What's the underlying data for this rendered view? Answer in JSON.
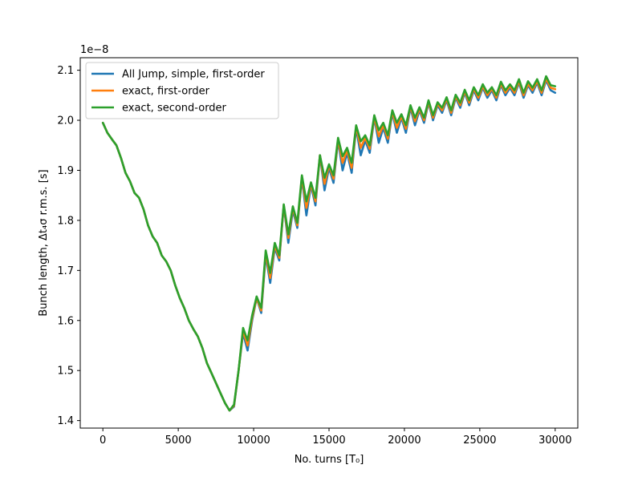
{
  "chart_data": {
    "type": "line",
    "xlabel": "No. turns [T₀]",
    "ylabel": "Bunch length, Δt₄σ r.m.s. [s]",
    "offset_text": "1e−8",
    "xlim": [
      -1500,
      31500
    ],
    "ylim": [
      1.385,
      2.125
    ],
    "xticks": [
      0,
      5000,
      10000,
      15000,
      20000,
      25000,
      30000
    ],
    "yticks": [
      1.4,
      1.5,
      1.6,
      1.7,
      1.8,
      1.9,
      2.0,
      2.1
    ],
    "ytick_labels": [
      "1.4",
      "1.5",
      "1.6",
      "1.7",
      "1.8",
      "1.9",
      "2.0",
      "2.1"
    ],
    "legend_position": "top-left",
    "x": [
      0,
      300,
      600,
      900,
      1200,
      1500,
      1800,
      2100,
      2400,
      2700,
      3000,
      3300,
      3600,
      3900,
      4200,
      4500,
      4800,
      5100,
      5400,
      5700,
      6000,
      6300,
      6600,
      6900,
      7200,
      7500,
      7800,
      8100,
      8400,
      8700,
      9000,
      9300,
      9600,
      9900,
      10200,
      10500,
      10800,
      11100,
      11400,
      11700,
      12000,
      12300,
      12600,
      12900,
      13200,
      13500,
      13800,
      14100,
      14400,
      14700,
      15000,
      15300,
      15600,
      15900,
      16200,
      16500,
      16800,
      17100,
      17400,
      17700,
      18000,
      18300,
      18600,
      18900,
      19200,
      19500,
      19800,
      20100,
      20400,
      20700,
      21000,
      21300,
      21600,
      21900,
      22200,
      22500,
      22800,
      23100,
      23400,
      23700,
      24000,
      24300,
      24600,
      24900,
      25200,
      25500,
      25800,
      26100,
      26400,
      26700,
      27000,
      27300,
      27600,
      27900,
      28200,
      28500,
      28800,
      29100,
      29400,
      29700,
      30000
    ],
    "series": [
      {
        "name": "All Jump, simple, first-order",
        "color": "#1f77b4",
        "values": [
          1.995,
          1.975,
          1.962,
          1.95,
          1.925,
          1.895,
          1.878,
          1.855,
          1.845,
          1.822,
          1.79,
          1.768,
          1.755,
          1.73,
          1.718,
          1.7,
          1.67,
          1.645,
          1.625,
          1.6,
          1.583,
          1.568,
          1.545,
          1.515,
          1.495,
          1.475,
          1.455,
          1.435,
          1.42,
          1.428,
          1.5,
          1.575,
          1.54,
          1.6,
          1.645,
          1.615,
          1.73,
          1.675,
          1.745,
          1.72,
          1.83,
          1.755,
          1.82,
          1.785,
          1.885,
          1.81,
          1.87,
          1.83,
          1.93,
          1.86,
          1.905,
          1.875,
          1.96,
          1.9,
          1.935,
          1.895,
          1.985,
          1.93,
          1.96,
          1.935,
          2.005,
          1.955,
          1.985,
          1.955,
          2.015,
          1.975,
          2.005,
          1.975,
          2.025,
          1.99,
          2.02,
          1.995,
          2.035,
          2.0,
          2.03,
          2.015,
          2.04,
          2.01,
          2.045,
          2.025,
          2.055,
          2.03,
          2.06,
          2.04,
          2.065,
          2.045,
          2.06,
          2.04,
          2.07,
          2.05,
          2.065,
          2.05,
          2.075,
          2.045,
          2.07,
          2.055,
          2.075,
          2.05,
          2.08,
          2.06,
          2.055
        ]
      },
      {
        "name": "exact, first-order",
        "color": "#ff7f0e",
        "values": [
          1.995,
          1.975,
          1.962,
          1.95,
          1.925,
          1.895,
          1.878,
          1.855,
          1.845,
          1.822,
          1.79,
          1.768,
          1.755,
          1.73,
          1.718,
          1.7,
          1.67,
          1.645,
          1.625,
          1.6,
          1.583,
          1.568,
          1.545,
          1.515,
          1.495,
          1.475,
          1.455,
          1.435,
          1.42,
          1.43,
          1.5,
          1.58,
          1.55,
          1.605,
          1.645,
          1.62,
          1.735,
          1.685,
          1.75,
          1.725,
          1.83,
          1.765,
          1.825,
          1.79,
          1.887,
          1.825,
          1.873,
          1.838,
          1.93,
          1.873,
          1.91,
          1.883,
          1.962,
          1.915,
          1.94,
          1.905,
          1.988,
          1.945,
          1.965,
          1.943,
          2.007,
          1.968,
          1.99,
          1.963,
          2.017,
          1.985,
          2.008,
          1.983,
          2.028,
          1.998,
          2.023,
          2.0,
          2.037,
          2.005,
          2.033,
          2.02,
          2.043,
          2.015,
          2.048,
          2.03,
          2.058,
          2.035,
          2.063,
          2.045,
          2.068,
          2.05,
          2.063,
          2.045,
          2.073,
          2.055,
          2.068,
          2.055,
          2.078,
          2.05,
          2.073,
          2.06,
          2.078,
          2.055,
          2.083,
          2.065,
          2.062
        ]
      },
      {
        "name": "exact, second-order",
        "color": "#2ca02c",
        "values": [
          1.995,
          1.975,
          1.962,
          1.95,
          1.925,
          1.895,
          1.878,
          1.855,
          1.845,
          1.822,
          1.79,
          1.768,
          1.755,
          1.73,
          1.718,
          1.7,
          1.67,
          1.645,
          1.625,
          1.6,
          1.583,
          1.568,
          1.545,
          1.515,
          1.495,
          1.475,
          1.455,
          1.435,
          1.42,
          1.432,
          1.5,
          1.585,
          1.56,
          1.61,
          1.648,
          1.625,
          1.74,
          1.695,
          1.755,
          1.73,
          1.832,
          1.772,
          1.828,
          1.795,
          1.89,
          1.838,
          1.876,
          1.845,
          1.93,
          1.885,
          1.912,
          1.89,
          1.965,
          1.928,
          1.945,
          1.915,
          1.99,
          1.958,
          1.97,
          1.95,
          2.01,
          1.98,
          1.995,
          1.97,
          2.02,
          1.995,
          2.012,
          1.99,
          2.03,
          2.005,
          2.026,
          2.005,
          2.04,
          2.01,
          2.036,
          2.025,
          2.046,
          2.02,
          2.051,
          2.035,
          2.061,
          2.04,
          2.066,
          2.05,
          2.072,
          2.055,
          2.066,
          2.05,
          2.077,
          2.06,
          2.072,
          2.06,
          2.082,
          2.055,
          2.078,
          2.065,
          2.082,
          2.06,
          2.088,
          2.07,
          2.068
        ]
      }
    ]
  }
}
